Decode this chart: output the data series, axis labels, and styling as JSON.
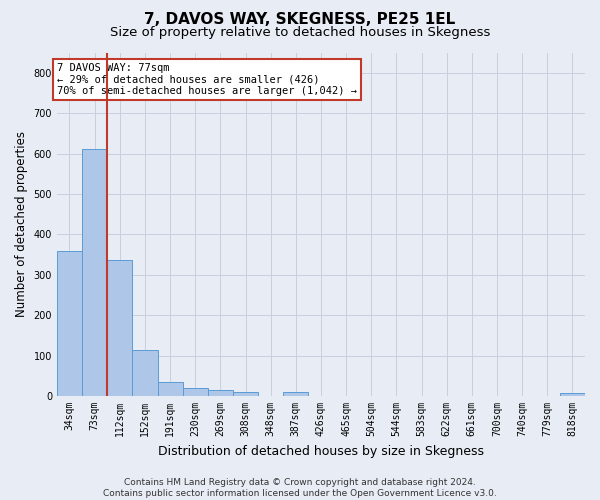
{
  "title": "7, DAVOS WAY, SKEGNESS, PE25 1EL",
  "subtitle": "Size of property relative to detached houses in Skegness",
  "xlabel": "Distribution of detached houses by size in Skegness",
  "ylabel": "Number of detached properties",
  "bar_labels": [
    "34sqm",
    "73sqm",
    "112sqm",
    "152sqm",
    "191sqm",
    "230sqm",
    "269sqm",
    "308sqm",
    "348sqm",
    "387sqm",
    "426sqm",
    "465sqm",
    "504sqm",
    "544sqm",
    "583sqm",
    "622sqm",
    "661sqm",
    "700sqm",
    "740sqm",
    "779sqm",
    "818sqm"
  ],
  "bar_values": [
    358,
    611,
    337,
    114,
    35,
    20,
    15,
    10,
    0,
    9,
    0,
    0,
    0,
    0,
    0,
    0,
    0,
    0,
    0,
    0,
    8
  ],
  "bar_color": "#aec6e8",
  "bar_edge_color": "#5b9bd5",
  "grid_color": "#c8d0e0",
  "background_color": "#e8edf5",
  "vline_x": 1.5,
  "vline_color": "#c0392b",
  "annotation_text": "7 DAVOS WAY: 77sqm\n← 29% of detached houses are smaller (426)\n70% of semi-detached houses are larger (1,042) →",
  "annotation_box_color": "white",
  "annotation_box_edge": "#c0392b",
  "ylim": [
    0,
    850
  ],
  "yticks": [
    0,
    100,
    200,
    300,
    400,
    500,
    600,
    700,
    800
  ],
  "footer": "Contains HM Land Registry data © Crown copyright and database right 2024.\nContains public sector information licensed under the Open Government Licence v3.0.",
  "title_fontsize": 11,
  "subtitle_fontsize": 9.5,
  "xlabel_fontsize": 9,
  "ylabel_fontsize": 8.5,
  "tick_fontsize": 7,
  "footer_fontsize": 6.5,
  "annot_fontsize": 7.5
}
